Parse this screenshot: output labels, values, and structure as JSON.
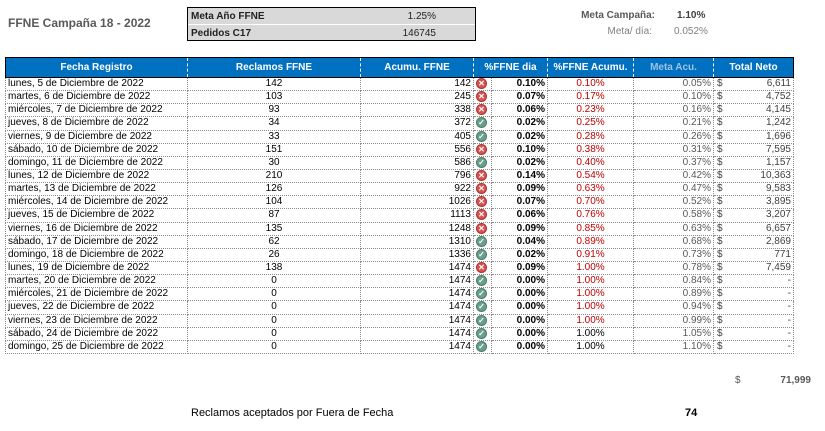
{
  "title": "FFNE Campaña 18 - 2022",
  "meta_box": {
    "rows": [
      {
        "label": "Meta Año FFNE",
        "value": "1.25%"
      },
      {
        "label": "Pedidos C17",
        "value": "146745"
      }
    ]
  },
  "campaign": {
    "meta_label": "Meta Campaña:",
    "meta_value": "1.10%",
    "dia_label": "Meta/ día:",
    "dia_value": "0.052%"
  },
  "table": {
    "headers": [
      "Fecha Registro",
      "Reclamos FFNE",
      "Acumu. FFNE",
      "%FFNE dia",
      "%FFNE Acumu.",
      "Meta Acu.",
      "Total Neto"
    ],
    "currency": "$",
    "rows": [
      {
        "fecha": "lunes, 5 de Diciembre de 2022",
        "reclamos": "142",
        "acum": "142",
        "status": "bad",
        "pct_dia": "0.10%",
        "pct_acum": "0.10%",
        "acum_red": true,
        "meta": "0.05%",
        "total": "6,611"
      },
      {
        "fecha": "martes, 6 de Diciembre de 2022",
        "reclamos": "103",
        "acum": "245",
        "status": "bad",
        "pct_dia": "0.07%",
        "pct_acum": "0.17%",
        "acum_red": true,
        "meta": "0.10%",
        "total": "4,752"
      },
      {
        "fecha": "miércoles, 7 de Diciembre de 2022",
        "reclamos": "93",
        "acum": "338",
        "status": "bad",
        "pct_dia": "0.06%",
        "pct_acum": "0.23%",
        "acum_red": true,
        "meta": "0.16%",
        "total": "4,145"
      },
      {
        "fecha": "jueves, 8 de Diciembre de 2022",
        "reclamos": "34",
        "acum": "372",
        "status": "good",
        "pct_dia": "0.02%",
        "pct_acum": "0.25%",
        "acum_red": true,
        "meta": "0.21%",
        "total": "1,242"
      },
      {
        "fecha": "viernes, 9 de Diciembre de 2022",
        "reclamos": "33",
        "acum": "405",
        "status": "good",
        "pct_dia": "0.02%",
        "pct_acum": "0.28%",
        "acum_red": true,
        "meta": "0.26%",
        "total": "1,696"
      },
      {
        "fecha": "sábado, 10 de Diciembre de 2022",
        "reclamos": "151",
        "acum": "556",
        "status": "bad",
        "pct_dia": "0.10%",
        "pct_acum": "0.38%",
        "acum_red": true,
        "meta": "0.31%",
        "total": "7,595"
      },
      {
        "fecha": "domingo, 11 de Diciembre de 2022",
        "reclamos": "30",
        "acum": "586",
        "status": "good",
        "pct_dia": "0.02%",
        "pct_acum": "0.40%",
        "acum_red": true,
        "meta": "0.37%",
        "total": "1,157"
      },
      {
        "fecha": "lunes, 12 de Diciembre de 2022",
        "reclamos": "210",
        "acum": "796",
        "status": "bad",
        "pct_dia": "0.14%",
        "pct_acum": "0.54%",
        "acum_red": true,
        "meta": "0.42%",
        "total": "10,363"
      },
      {
        "fecha": "martes, 13 de Diciembre de 2022",
        "reclamos": "126",
        "acum": "922",
        "status": "bad",
        "pct_dia": "0.09%",
        "pct_acum": "0.63%",
        "acum_red": true,
        "meta": "0.47%",
        "total": "9,583"
      },
      {
        "fecha": "miércoles, 14 de Diciembre de 2022",
        "reclamos": "104",
        "acum": "1026",
        "status": "bad",
        "pct_dia": "0.07%",
        "pct_acum": "0.70%",
        "acum_red": true,
        "meta": "0.52%",
        "total": "3,895"
      },
      {
        "fecha": "jueves, 15 de Diciembre de 2022",
        "reclamos": "87",
        "acum": "1113",
        "status": "bad",
        "pct_dia": "0.06%",
        "pct_acum": "0.76%",
        "acum_red": true,
        "meta": "0.58%",
        "total": "3,207"
      },
      {
        "fecha": "viernes, 16 de Diciembre de 2022",
        "reclamos": "135",
        "acum": "1248",
        "status": "bad",
        "pct_dia": "0.09%",
        "pct_acum": "0.85%",
        "acum_red": true,
        "meta": "0.63%",
        "total": "6,657"
      },
      {
        "fecha": "sábado, 17 de Diciembre de 2022",
        "reclamos": "62",
        "acum": "1310",
        "status": "good",
        "pct_dia": "0.04%",
        "pct_acum": "0.89%",
        "acum_red": true,
        "meta": "0.68%",
        "total": "2,869"
      },
      {
        "fecha": "domingo, 18 de Diciembre de 2022",
        "reclamos": "26",
        "acum": "1336",
        "status": "good",
        "pct_dia": "0.02%",
        "pct_acum": "0.91%",
        "acum_red": true,
        "meta": "0.73%",
        "total": "771"
      },
      {
        "fecha": "lunes, 19 de Diciembre de 2022",
        "reclamos": "138",
        "acum": "1474",
        "status": "bad",
        "pct_dia": "0.09%",
        "pct_acum": "1.00%",
        "acum_red": true,
        "meta": "0.78%",
        "total": "7,459"
      },
      {
        "fecha": "martes, 20 de Diciembre de 2022",
        "reclamos": "0",
        "acum": "1474",
        "status": "good",
        "pct_dia": "0.00%",
        "pct_acum": "1.00%",
        "acum_red": true,
        "meta": "0.84%",
        "total": "-"
      },
      {
        "fecha": "miércoles, 21 de Diciembre de 2022",
        "reclamos": "0",
        "acum": "1474",
        "status": "good",
        "pct_dia": "0.00%",
        "pct_acum": "1.00%",
        "acum_red": true,
        "meta": "0.89%",
        "total": "-"
      },
      {
        "fecha": "jueves, 22 de Diciembre de 2022",
        "reclamos": "0",
        "acum": "1474",
        "status": "good",
        "pct_dia": "0.00%",
        "pct_acum": "1.00%",
        "acum_red": true,
        "meta": "0.94%",
        "total": "-"
      },
      {
        "fecha": "viernes, 23 de Diciembre de 2022",
        "reclamos": "0",
        "acum": "1474",
        "status": "good",
        "pct_dia": "0.00%",
        "pct_acum": "1.00%",
        "acum_red": true,
        "meta": "0.99%",
        "total": "-"
      },
      {
        "fecha": "sábado, 24 de Diciembre de 2022",
        "reclamos": "0",
        "acum": "1474",
        "status": "good",
        "pct_dia": "0.00%",
        "pct_acum": "1.00%",
        "acum_red": false,
        "meta": "1.05%",
        "total": "-"
      },
      {
        "fecha": "domingo, 25 de Diciembre de 2022",
        "reclamos": "0",
        "acum": "1474",
        "status": "good",
        "pct_dia": "0.00%",
        "pct_acum": "1.00%",
        "acum_red": false,
        "meta": "1.10%",
        "total": "-"
      }
    ],
    "grand_total": "71,999"
  },
  "footer": {
    "label": "Reclamos aceptados por Fuera de Fecha",
    "value": "74"
  },
  "colors": {
    "header_bg": "#0070c0",
    "bad": "#d9534f",
    "good": "#6a9f8c",
    "red_text": "#c00000"
  },
  "icons": {
    "bad": "x-circle-icon",
    "good": "check-circle-icon"
  }
}
